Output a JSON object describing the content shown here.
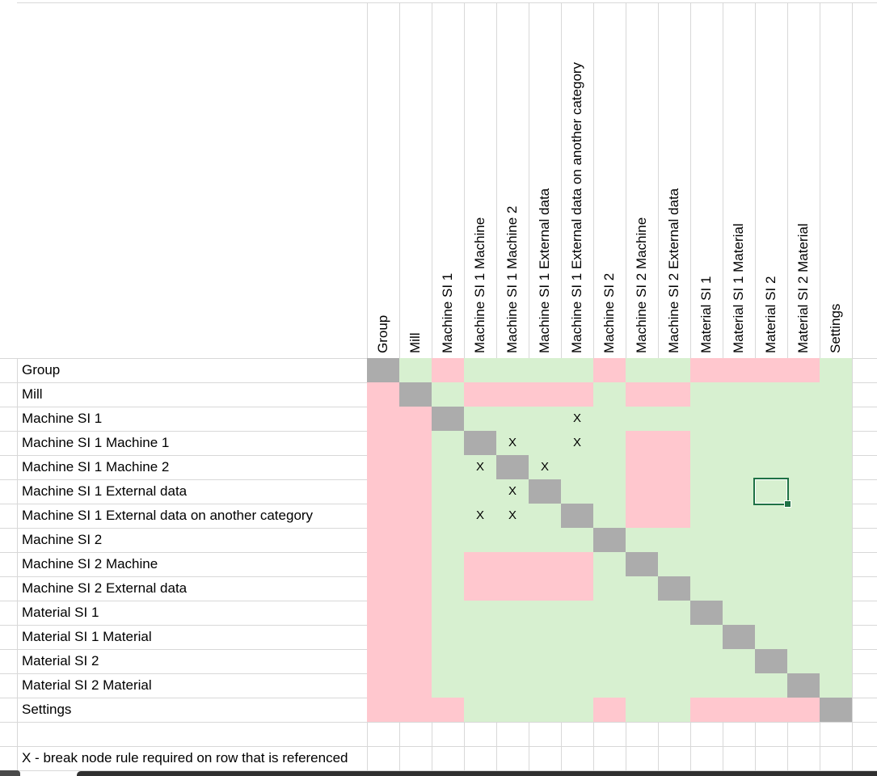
{
  "sheet": {
    "columns": [
      "Group",
      "Mill",
      "Machine SI 1",
      "Machine SI 1 Machine",
      "Machine SI 1 Machine 2",
      "Machine SI 1 External data",
      "Machine SI 1 External data on another category",
      "Machine SI 2",
      "Machine SI 2 Machine",
      "Machine SI 2 External data",
      "Material SI 1",
      "Material SI 1 Material",
      "Material SI 2",
      "Material SI 2 Material",
      "Settings"
    ],
    "rows": [
      "Group",
      "Mill",
      "Machine SI 1",
      "Machine SI 1 Machine 1",
      "Machine SI 1 Machine 2",
      "Machine SI 1 External data",
      "Machine SI 1 External data on another category",
      "Machine SI 2",
      "Machine SI 2 Machine",
      "Machine SI 2 External data",
      "Material SI 1",
      "Material SI 1 Material",
      "Material SI 2",
      "Material SI 2 Material",
      "Settings"
    ],
    "matrix": [
      "DGPGGGGPGGPPPPG",
      "PDGPPPPGPPGGGGG",
      "PPDGGGXGGGGGGGG",
      "PPGDXGXGPPGGGGG",
      "PPGXDXGGPPGGGGG",
      "PPGGXDGGPPGGGGG",
      "PPGXXGDGPPGGGGG",
      "PPGGGGGDGGGGGGG",
      "PPGPPPPGDGGGGGG",
      "PPGPPPPGGDGGGGG",
      "PPGGGGGGGGDGGGG",
      "PPGGGGGGGGGDGGG",
      "PPGGGGGGGGGGDGG",
      "PPGGGGGGGGGGGDG",
      "PPPGGGGPGGPPPPD"
    ],
    "cell_legend": {
      "D": "diagonal-gray",
      "G": "allowed-green",
      "P": "blocked-pink",
      "X": "allowed-green-with-x-marker"
    },
    "x_marker": "X",
    "selection": {
      "row": 6,
      "col": 13,
      "row_label": "Machine SI 1 External data",
      "column_label": "Material SI 2"
    },
    "footnote": "X - break node rule required on row that is referenced",
    "colors": {
      "green": "#d7f0d0",
      "pink": "#ffc7ce",
      "gray": "#acacac",
      "gridline": "#d8d8d8",
      "selection_border": "#1e7145",
      "text": "#000000"
    }
  }
}
